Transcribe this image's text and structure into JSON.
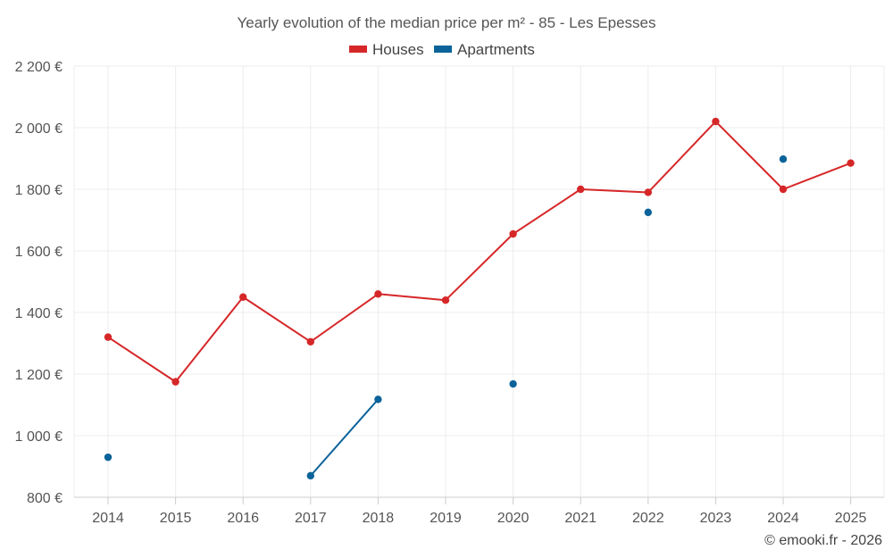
{
  "chart_data": {
    "type": "line",
    "title": "Yearly evolution of the median price per m² - 85 - Les Epesses",
    "categories": [
      "2014",
      "2015",
      "2016",
      "2017",
      "2018",
      "2019",
      "2020",
      "2021",
      "2022",
      "2023",
      "2024",
      "2025"
    ],
    "series": [
      {
        "name": "Houses",
        "color": "#d62728",
        "values": [
          1320,
          1175,
          1450,
          1305,
          1460,
          1440,
          1655,
          1800,
          1790,
          2020,
          1800,
          1885
        ]
      },
      {
        "name": "Apartments",
        "color": "#0b6399",
        "values": [
          930,
          null,
          null,
          870,
          1118,
          null,
          1168,
          null,
          1725,
          null,
          1898,
          null
        ]
      }
    ],
    "ylim": [
      800,
      2200
    ],
    "yticks": [
      800,
      1000,
      1200,
      1400,
      1600,
      1800,
      2000,
      2200
    ],
    "ytick_labels": [
      "800 €",
      "1 000 €",
      "1 200 €",
      "1 400 €",
      "1 600 €",
      "1 800 €",
      "2 000 €",
      "2 200 €"
    ],
    "grid": true,
    "legend_position": "top-center",
    "credit": "© emooki.fr - 2026"
  }
}
